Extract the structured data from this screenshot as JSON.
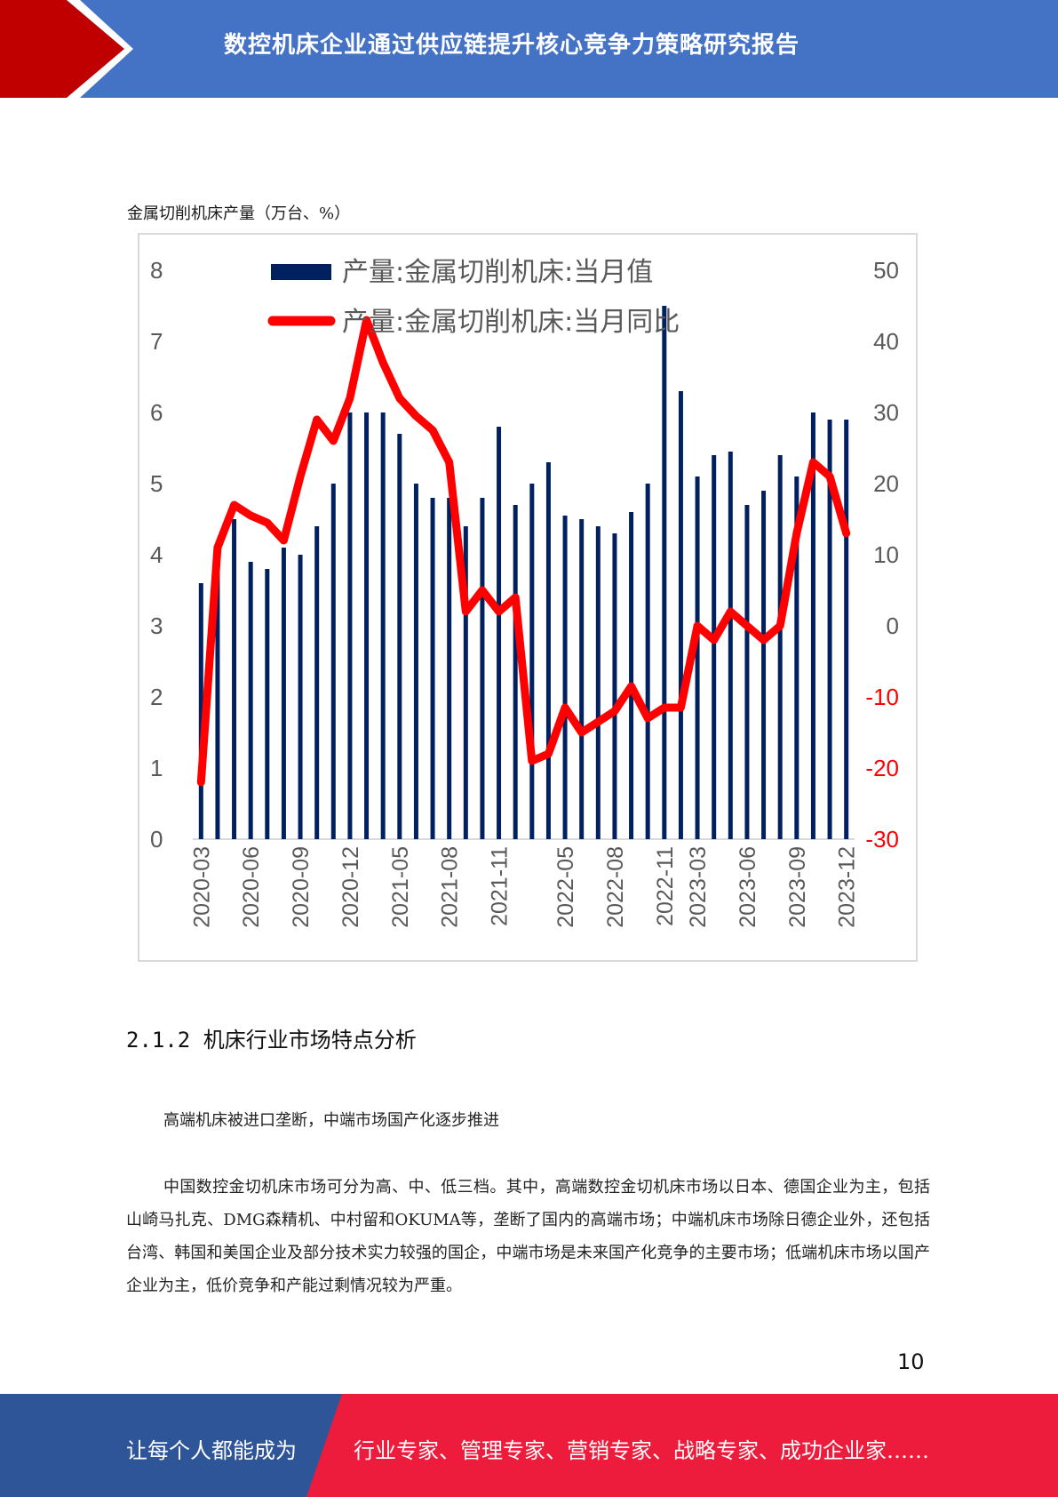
{
  "header": {
    "title": "数控机床企业通过供应链提升核心竞争力策略研究报告"
  },
  "chart_caption": "金属切削机床产量（万台、%）",
  "chart_data": {
    "type": "bar+line",
    "title": "",
    "legend": {
      "placement": "top",
      "entries": [
        "产量:金属切削机床:当月值",
        "产量:金属切削机床:当月同比"
      ]
    },
    "left_axis": {
      "ylim": [
        0,
        8
      ],
      "ticks": [
        "0",
        "1",
        "2",
        "3",
        "4",
        "5",
        "6",
        "7",
        "8"
      ]
    },
    "right_axis": {
      "ylim": [
        -30,
        50
      ],
      "ticks": [
        "-30",
        "-20",
        "-10",
        "0",
        "10",
        "20",
        "30",
        "40",
        "50"
      ]
    },
    "x_tick_labels": [
      "2020-03",
      "2020-06",
      "2020-09",
      "2020-12",
      "2021-05",
      "2021-08",
      "2021-11",
      "2022-05",
      "2022-08",
      "2022-11",
      "2023-03",
      "2023-06",
      "2023-09",
      "2023-12"
    ],
    "categories": [
      "2020-03",
      "2020-04",
      "2020-05",
      "2020-06",
      "2020-07",
      "2020-08",
      "2020-09",
      "2020-10",
      "2020-11",
      "2020-12",
      "2021-03",
      "2021-04",
      "2021-05",
      "2021-06",
      "2021-07",
      "2021-08",
      "2021-09",
      "2021-10",
      "2021-11",
      "2021-12",
      "2022-03",
      "2022-04",
      "2022-05",
      "2022-06",
      "2022-07",
      "2022-08",
      "2022-09",
      "2022-10",
      "2022-11",
      "2022-12",
      "2023-03",
      "2023-04",
      "2023-05",
      "2023-06",
      "2023-07",
      "2023-08",
      "2023-09",
      "2023-10",
      "2023-11",
      "2023-12"
    ],
    "series": [
      {
        "name": "产量:金属切削机床:当月值",
        "type": "bar",
        "axis": "left",
        "color": "#002060",
        "values": [
          3.6,
          4.1,
          4.5,
          3.9,
          3.8,
          4.1,
          4.0,
          4.4,
          5.0,
          6.0,
          6.0,
          6.0,
          5.7,
          5.0,
          4.8,
          4.8,
          4.4,
          4.8,
          5.8,
          4.7,
          5.0,
          5.3,
          4.55,
          4.5,
          4.4,
          4.3,
          4.6,
          5.0,
          7.5,
          6.3,
          5.1,
          5.4,
          5.45,
          4.7,
          4.9,
          5.4,
          5.1,
          6.0,
          5.9,
          5.9
        ]
      },
      {
        "name": "产量:金属切削机床:当月同比",
        "type": "line",
        "axis": "right",
        "color": "#ff0000",
        "values": [
          -22,
          11,
          17,
          15.5,
          14.5,
          12,
          21,
          29,
          26,
          32,
          43,
          37,
          32,
          29.5,
          27.5,
          23,
          2,
          5,
          2,
          4,
          -19,
          -18,
          -11.5,
          -15,
          -13.5,
          -12,
          -8.5,
          -13,
          -11.5,
          -11.5,
          0,
          -2,
          2,
          0,
          -2,
          0,
          13,
          23,
          21,
          13
        ]
      }
    ]
  },
  "section": {
    "heading": "2.1.2 机床行业市场特点分析"
  },
  "paragraphs": [
    "高端机床被进口垄断，中端市场国产化逐步推进",
    "中国数控金切机床市场可分为高、中、低三档。其中，高端数控金切机床市场以日本、德国企业为主，包括山崎马扎克、DMG森精机、中村留和OKUMA等，垄断了国内的高端市场；中端机床市场除日德企业外，还包括台湾、韩国和美国企业及部分技术实力较强的国企，中端市场是未来国产化竞争的主要市场；低端机床市场以国产企业为主，低价竞争和产能过剩情况较为严重。"
  ],
  "page_number": "10",
  "footer": {
    "left_text": "让每个人都能成为",
    "right_text": "行业专家、管理专家、营销专家、战略专家、成功企业家……"
  },
  "colors": {
    "header_blue": "#4472c4",
    "accent_red": "#c00000",
    "footer_blue": "#2e5597",
    "footer_red": "#ee1c3c"
  }
}
